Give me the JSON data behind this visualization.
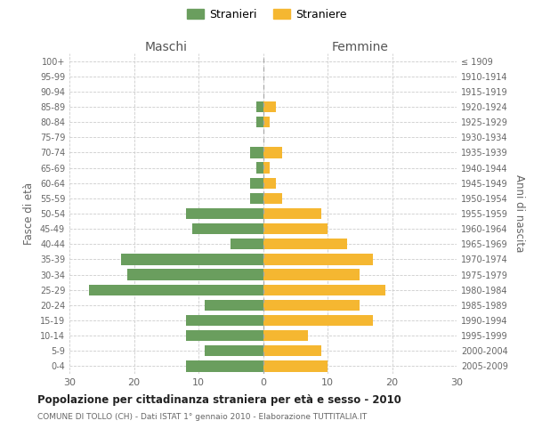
{
  "age_groups": [
    "100+",
    "95-99",
    "90-94",
    "85-89",
    "80-84",
    "75-79",
    "70-74",
    "65-69",
    "60-64",
    "55-59",
    "50-54",
    "45-49",
    "40-44",
    "35-39",
    "30-34",
    "25-29",
    "20-24",
    "15-19",
    "10-14",
    "5-9",
    "0-4"
  ],
  "birth_years": [
    "≤ 1909",
    "1910-1914",
    "1915-1919",
    "1920-1924",
    "1925-1929",
    "1930-1934",
    "1935-1939",
    "1940-1944",
    "1945-1949",
    "1950-1954",
    "1955-1959",
    "1960-1964",
    "1965-1969",
    "1970-1974",
    "1975-1979",
    "1980-1984",
    "1985-1989",
    "1990-1994",
    "1995-1999",
    "2000-2004",
    "2005-2009"
  ],
  "males": [
    0,
    0,
    0,
    1,
    1,
    0,
    2,
    1,
    2,
    2,
    12,
    11,
    5,
    22,
    21,
    27,
    9,
    12,
    12,
    9,
    12
  ],
  "females": [
    0,
    0,
    0,
    2,
    1,
    0,
    3,
    1,
    2,
    3,
    9,
    10,
    13,
    17,
    15,
    19,
    15,
    17,
    7,
    9,
    10
  ],
  "male_color": "#6a9e5e",
  "female_color": "#f5b731",
  "title": "Popolazione per cittadinanza straniera per età e sesso - 2010",
  "subtitle": "COMUNE DI TOLLO (CH) - Dati ISTAT 1° gennaio 2010 - Elaborazione TUTTITALIA.IT",
  "ylabel_left": "Fasce di età",
  "ylabel_right": "Anni di nascita",
  "xlabel_left": "Maschi",
  "xlabel_right": "Femmine",
  "legend_male": "Stranieri",
  "legend_female": "Straniere",
  "xlim": 30,
  "background_color": "#ffffff",
  "grid_color": "#cccccc"
}
